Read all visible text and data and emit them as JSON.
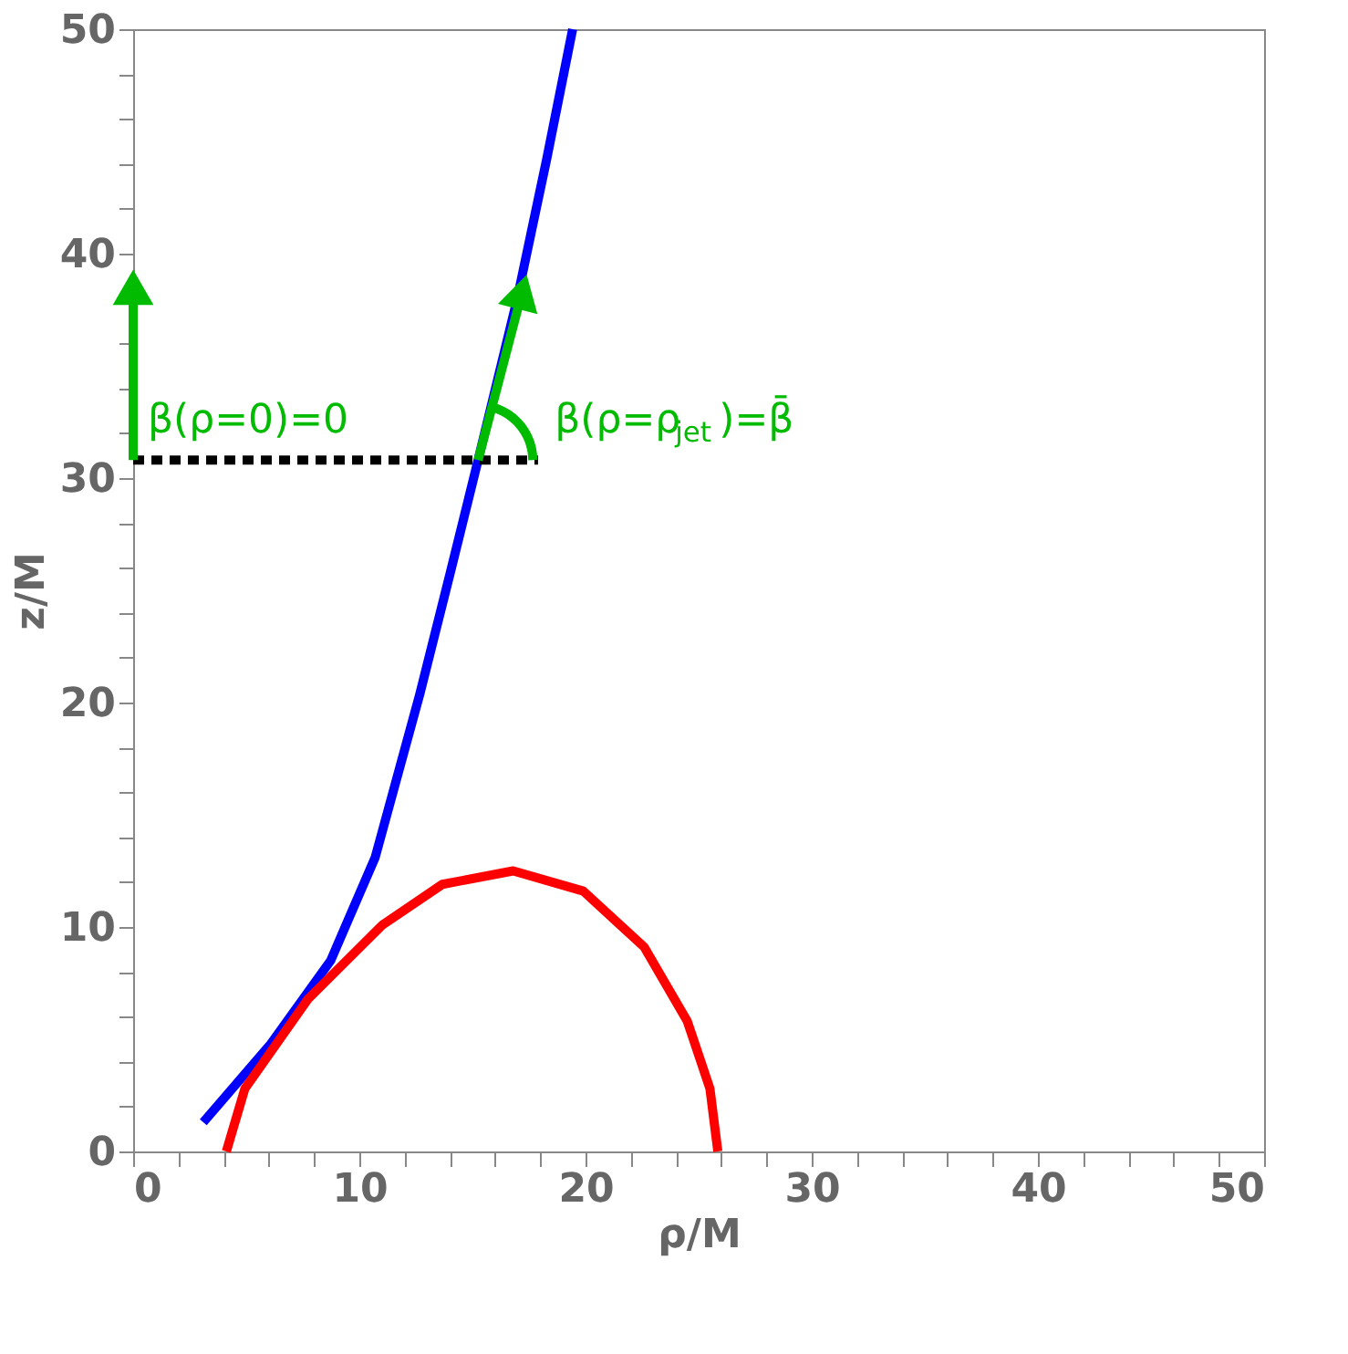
{
  "chart_data": {
    "type": "line",
    "xlabel": "ρ/M",
    "ylabel": "z/M",
    "xlim": [
      0,
      50
    ],
    "ylim": [
      0,
      50
    ],
    "xticks": [
      0,
      {
        "value": 2,
        "label": null
      },
      {
        "value": 4,
        "label": null
      },
      {
        "value": 6,
        "label": null
      },
      {
        "value": 8,
        "label": null
      },
      10,
      {
        "value": 12,
        "label": null
      },
      {
        "value": 14,
        "label": null
      },
      {
        "value": 16,
        "label": null
      },
      {
        "value": 18,
        "label": null
      },
      20,
      {
        "value": 22,
        "label": null
      },
      {
        "value": 24,
        "label": null
      },
      {
        "value": 26,
        "label": null
      },
      {
        "value": 28,
        "label": null
      },
      30,
      {
        "value": 32,
        "label": null
      },
      {
        "value": 34,
        "label": null
      },
      {
        "value": 36,
        "label": null
      },
      {
        "value": 38,
        "label": null
      },
      40,
      {
        "value": 42,
        "label": null
      },
      {
        "value": 44,
        "label": null
      },
      {
        "value": 46,
        "label": null
      },
      {
        "value": 48,
        "label": null
      },
      50
    ],
    "yticks": [
      0,
      {
        "value": 2,
        "label": null
      },
      {
        "value": 4,
        "label": null
      },
      {
        "value": 6,
        "label": null
      },
      {
        "value": 8,
        "label": null
      },
      10,
      {
        "value": 12,
        "label": null
      },
      {
        "value": 14,
        "label": null
      },
      {
        "value": 16,
        "label": null
      },
      {
        "value": 18,
        "label": null
      },
      20,
      {
        "value": 22,
        "label": null
      },
      {
        "value": 24,
        "label": null
      },
      {
        "value": 26,
        "label": null
      },
      {
        "value": 28,
        "label": null
      },
      30,
      {
        "value": 32,
        "label": null
      },
      {
        "value": 34,
        "label": null
      },
      {
        "value": 36,
        "label": null
      },
      {
        "value": 38,
        "label": null
      },
      40,
      {
        "value": 42,
        "label": null
      },
      {
        "value": 44,
        "label": null
      },
      {
        "value": 46,
        "label": null
      },
      {
        "value": 48,
        "label": null
      },
      50
    ],
    "grid": false,
    "series": [
      {
        "color": "#0000ff",
        "x": [
          3.1,
          6.09,
          8.73,
          10.7,
          12.68,
          14.0,
          15.25,
          16.96,
          18.28,
          19.43
        ],
        "values": [
          1.3,
          4.8,
          8.5,
          13.1,
          20.4,
          25.7,
          30.8,
          37.9,
          44.2,
          50
        ]
      },
      {
        "color": "#ff0000",
        "x": [
          4.12,
          4.94,
          7.74,
          11.03,
          13.67,
          16.8,
          19.9,
          22.6,
          24.5,
          25.5,
          25.85
        ],
        "values": [
          0,
          2.8,
          6.8,
          10.1,
          11.9,
          12.5,
          11.6,
          9.1,
          5.8,
          2.8,
          0
        ]
      },
      {
        "color": "#000000",
        "line_style": "dashed",
        "x": [
          0,
          17.9
        ],
        "values": [
          30.8,
          30.8
        ]
      },
      {
        "color": "#00bb00",
        "x": [
          0,
          0
        ],
        "values": [
          30.8,
          38.5
        ]
      },
      {
        "color": "#00bb00",
        "x": [
          15.25,
          17.2
        ],
        "values": [
          30.8,
          38.3
        ]
      }
    ],
    "annotations": [
      "β(ρ=0)=0",
      "β(ρ=ρ$_{jet}$)=β̄"
    ]
  }
}
